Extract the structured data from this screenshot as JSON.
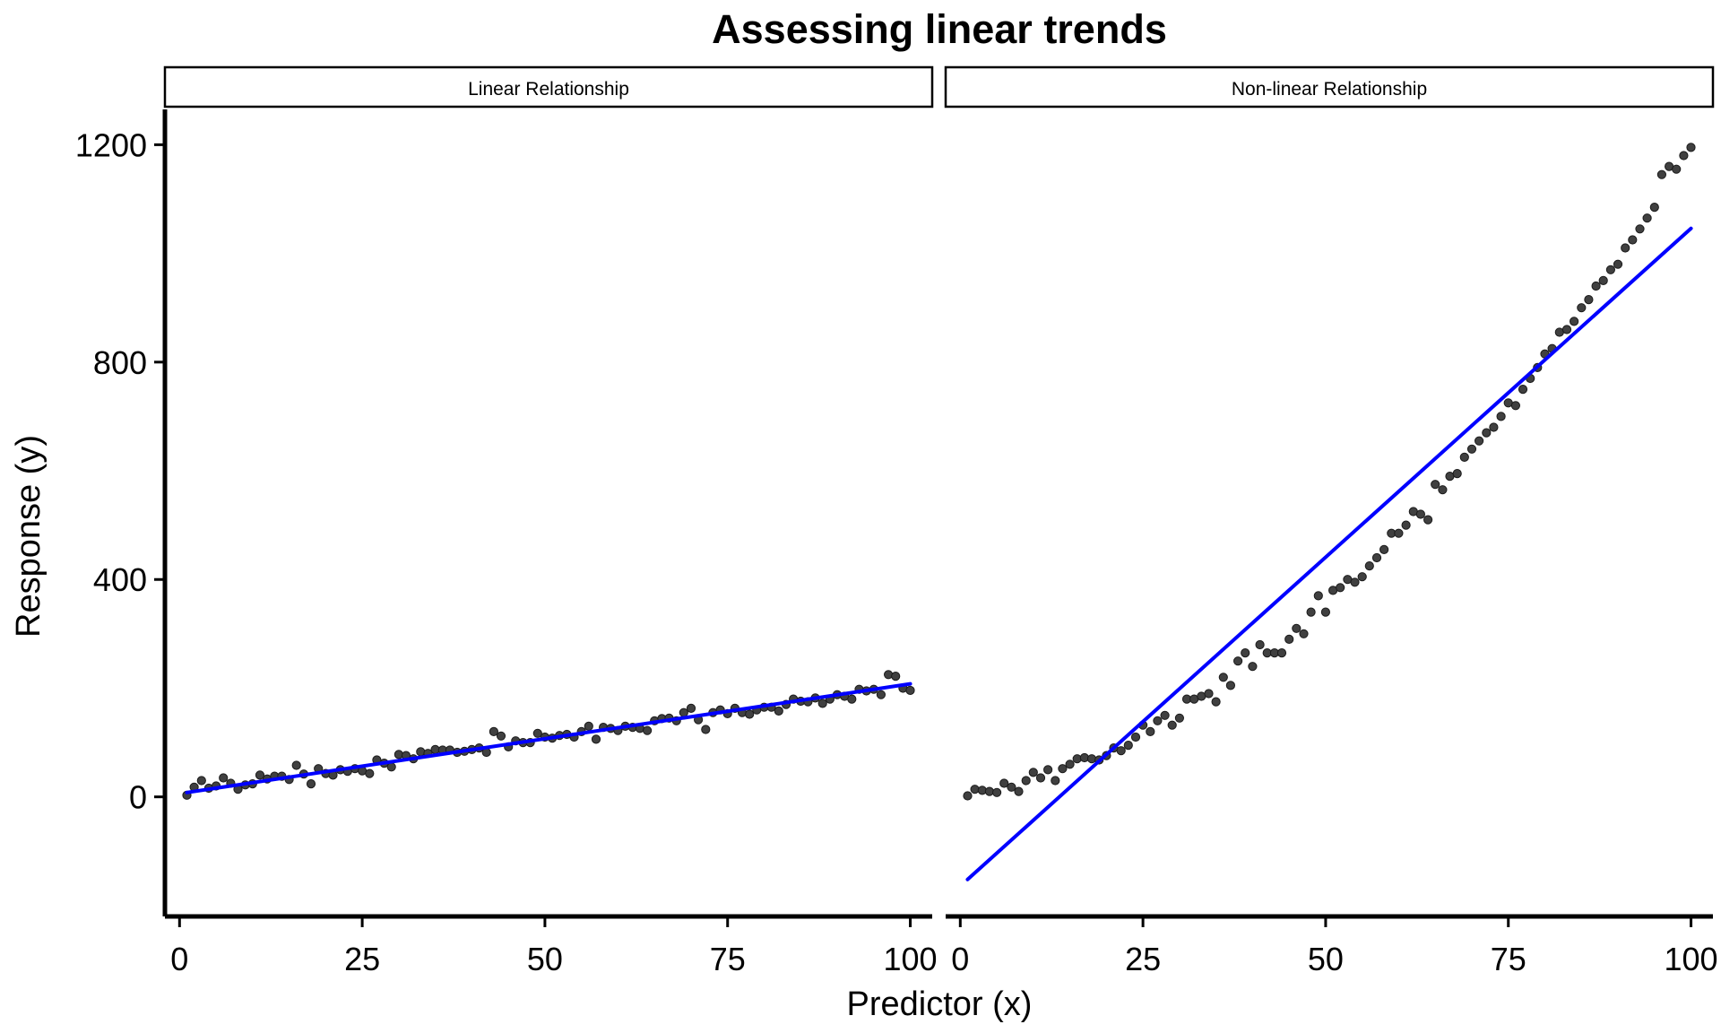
{
  "chart_data": {
    "type": "scatter",
    "title": "Assessing linear trends",
    "xlabel": "Predictor (x)",
    "ylabel": "Response (y)",
    "xlim": [
      -2,
      103
    ],
    "ylim": [
      -220,
      1265
    ],
    "x_ticks": [
      0,
      25,
      50,
      75,
      100
    ],
    "y_ticks": [
      0,
      400,
      800,
      1200
    ],
    "grid": false,
    "colors": {
      "points": "#404040",
      "point_outline": "#1a1a1a",
      "fit_line": "#0000ff",
      "axis": "#000000",
      "strip_fill": "#ffffff"
    },
    "panels": [
      {
        "strip_label": "Linear Relationship",
        "points": {
          "x": [
            1,
            2,
            3,
            4,
            5,
            6,
            7,
            8,
            9,
            10,
            11,
            12,
            13,
            14,
            15,
            16,
            17,
            18,
            19,
            20,
            21,
            22,
            23,
            24,
            25,
            26,
            27,
            28,
            29,
            30,
            31,
            32,
            33,
            34,
            35,
            36,
            37,
            38,
            39,
            40,
            41,
            42,
            43,
            44,
            45,
            46,
            47,
            48,
            49,
            50,
            51,
            52,
            53,
            54,
            55,
            56,
            57,
            58,
            59,
            60,
            61,
            62,
            63,
            64,
            65,
            66,
            67,
            68,
            69,
            70,
            71,
            72,
            73,
            74,
            75,
            76,
            77,
            78,
            79,
            80,
            81,
            82,
            83,
            84,
            85,
            86,
            87,
            88,
            89,
            90,
            91,
            92,
            93,
            94,
            95,
            96,
            97,
            98,
            99,
            100
          ],
          "y": [
            3,
            18,
            30,
            16,
            20,
            35,
            25,
            14,
            22,
            24,
            40,
            33,
            38,
            38,
            32,
            58,
            42,
            24,
            52,
            43,
            40,
            50,
            47,
            52,
            48,
            43,
            68,
            62,
            55,
            78,
            76,
            70,
            83,
            80,
            87,
            86,
            86,
            82,
            84,
            87,
            90,
            82,
            120,
            112,
            92,
            103,
            100,
            100,
            117,
            110,
            108,
            113,
            115,
            110,
            120,
            130,
            106,
            128,
            126,
            122,
            130,
            128,
            126,
            122,
            140,
            144,
            145,
            140,
            155,
            163,
            142,
            124,
            155,
            160,
            153,
            163,
            155,
            152,
            160,
            165,
            165,
            158,
            170,
            180,
            176,
            175,
            182,
            172,
            180,
            188,
            185,
            180,
            198,
            195,
            198,
            188,
            225,
            222,
            200,
            196
          ]
        },
        "fit": {
          "x": [
            1,
            100
          ],
          "y": [
            8,
            208
          ]
        }
      },
      {
        "strip_label": "Non-linear Relationship",
        "points": {
          "x": [
            1,
            2,
            3,
            4,
            5,
            6,
            7,
            8,
            9,
            10,
            11,
            12,
            13,
            14,
            15,
            16,
            17,
            18,
            19,
            20,
            21,
            22,
            23,
            24,
            25,
            26,
            27,
            28,
            29,
            30,
            31,
            32,
            33,
            34,
            35,
            36,
            37,
            38,
            39,
            40,
            41,
            42,
            43,
            44,
            45,
            46,
            47,
            48,
            49,
            50,
            51,
            52,
            53,
            54,
            55,
            56,
            57,
            58,
            59,
            60,
            61,
            62,
            63,
            64,
            65,
            66,
            67,
            68,
            69,
            70,
            71,
            72,
            73,
            74,
            75,
            76,
            77,
            78,
            79,
            80,
            81,
            82,
            83,
            84,
            85,
            86,
            87,
            88,
            89,
            90,
            91,
            92,
            93,
            94,
            95,
            96,
            97,
            98,
            99,
            100
          ],
          "y": [
            2,
            14,
            12,
            10,
            8,
            25,
            18,
            10,
            30,
            45,
            35,
            50,
            30,
            52,
            60,
            70,
            72,
            70,
            68,
            76,
            90,
            85,
            95,
            110,
            132,
            120,
            140,
            150,
            132,
            145,
            180,
            180,
            185,
            190,
            175,
            220,
            205,
            250,
            265,
            240,
            280,
            265,
            265,
            265,
            290,
            310,
            300,
            340,
            370,
            340,
            380,
            385,
            400,
            395,
            405,
            425,
            440,
            455,
            485,
            485,
            500,
            525,
            520,
            510,
            575,
            565,
            590,
            595,
            625,
            640,
            655,
            670,
            680,
            700,
            725,
            720,
            750,
            770,
            790,
            815,
            825,
            855,
            860,
            875,
            900,
            915,
            940,
            950,
            970,
            980,
            1010,
            1025,
            1045,
            1065,
            1085,
            1145,
            1160,
            1155,
            1180,
            1195
          ]
        },
        "fit": {
          "x": [
            1,
            100
          ],
          "y": [
            -152,
            1046
          ]
        }
      }
    ]
  }
}
